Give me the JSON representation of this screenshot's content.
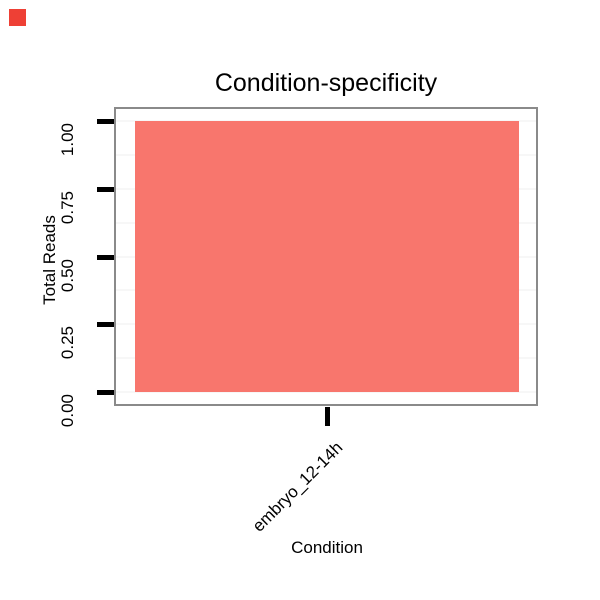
{
  "corner_marker": {
    "color": "#ee4035"
  },
  "chart_data": {
    "type": "bar",
    "title": "Condition-specificity",
    "xlabel": "Condition",
    "ylabel": "Total Reads",
    "categories": [
      "embryo_12-14h"
    ],
    "values": [
      1.0
    ],
    "series_name": "Total Reads",
    "ylim": [
      0,
      1
    ],
    "yticks": [
      {
        "value": 0.0,
        "label": "0.00"
      },
      {
        "value": 0.25,
        "label": "0.25"
      },
      {
        "value": 0.5,
        "label": "0.50"
      },
      {
        "value": 0.75,
        "label": "0.75"
      },
      {
        "value": 1.0,
        "label": "1.00"
      }
    ],
    "minor_gridlines": [
      0.125,
      0.375,
      0.625,
      0.875
    ],
    "bar_color": "#F8766D",
    "panel_border_color": "#8a8a8a",
    "tick_color": "#000000",
    "text_color": "#000000",
    "gridline_color": "#f7f7f7",
    "background_color": "#ffffff",
    "legend": "none",
    "grid": "faint"
  }
}
